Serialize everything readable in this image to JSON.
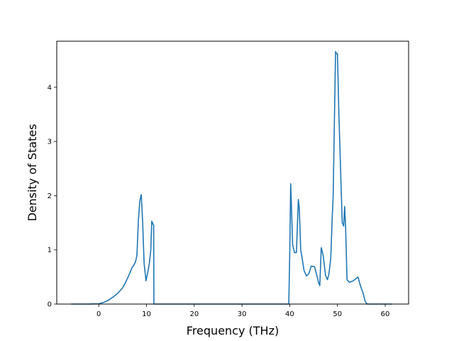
{
  "chart_data": {
    "type": "line",
    "title": "",
    "xlabel": "Frequency (THz)",
    "ylabel": "Density of States",
    "xlim": [
      -8.8,
      64.9
    ],
    "ylim": [
      0,
      4.85
    ],
    "xticks": [
      0,
      10,
      20,
      30,
      40,
      50,
      60
    ],
    "yticks": [
      0,
      1,
      2,
      3,
      4
    ],
    "grid": false,
    "line_color": "#1f77b4",
    "series": [
      {
        "x": [
          -5.8,
          -2,
          0,
          1,
          2,
          3,
          4,
          5,
          5.5,
          6,
          6.5,
          7,
          7.3,
          7.7,
          8,
          8.3,
          8.6,
          8.9,
          9.2,
          9.5,
          9.9,
          10.3,
          10.6,
          10.9,
          11.1,
          11.5,
          11.55,
          39.8,
          40.0,
          40.2,
          40.4,
          40.6,
          41.0,
          41.4,
          41.8,
          42.0,
          42.3,
          42.6,
          43.0,
          43.5,
          44.0,
          44.5,
          45.2,
          45.7,
          46.0,
          46.3,
          46.6,
          47.0,
          47.5,
          47.9,
          48.2,
          48.6,
          48.9,
          49.1,
          49.6,
          49.8,
          50.0,
          50.3,
          51.0,
          51.3,
          51.5,
          51.7,
          52.0,
          52.5,
          53.3,
          54.3,
          54.8,
          55.3,
          55.8,
          56.2,
          57.0,
          61.5
        ],
        "y": [
          0,
          0,
          0.005,
          0.03,
          0.07,
          0.13,
          0.2,
          0.3,
          0.38,
          0.47,
          0.57,
          0.68,
          0.71,
          0.78,
          0.9,
          1.55,
          1.9,
          2.02,
          1.5,
          0.75,
          0.43,
          0.6,
          0.75,
          1.0,
          1.53,
          1.45,
          0,
          0,
          0.9,
          2.22,
          1.7,
          1.1,
          0.95,
          0.95,
          1.93,
          1.78,
          1.0,
          0.85,
          0.62,
          0.52,
          0.56,
          0.7,
          0.69,
          0.52,
          0.41,
          0.34,
          1.04,
          0.9,
          0.53,
          0.45,
          0.55,
          0.85,
          1.6,
          2.0,
          4.66,
          4.62,
          4.62,
          3.5,
          1.5,
          1.44,
          1.8,
          1.45,
          0.45,
          0.4,
          0.43,
          0.5,
          0.34,
          0.22,
          0.05,
          0,
          0,
          0
        ]
      }
    ]
  }
}
